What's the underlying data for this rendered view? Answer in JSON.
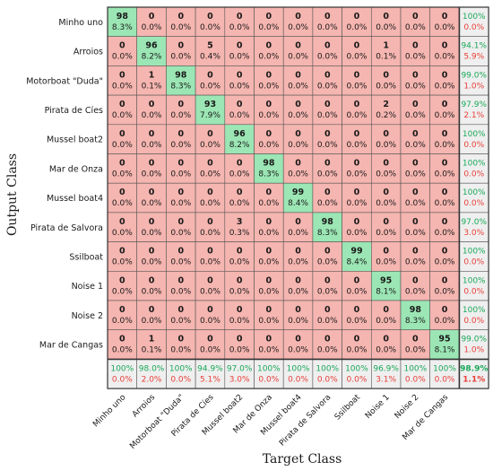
{
  "chart_data": {
    "type": "heatmap",
    "subtype": "confusion-matrix",
    "ylabel": "Output Class",
    "xlabel": "Target Class",
    "classes": [
      "Minho uno",
      "Arroios",
      "Motorboat \"Duda\"",
      "Pirata de Cíes",
      "Mussel boat2",
      "Mar de Onza",
      "Mussel boat4",
      "Pirata de Salvora",
      "Ssilboat",
      "Noise 1",
      "Noise 2",
      "Mar de Cangas"
    ],
    "counts": [
      [
        98,
        0,
        0,
        0,
        0,
        0,
        0,
        0,
        0,
        0,
        0,
        0
      ],
      [
        0,
        96,
        0,
        5,
        0,
        0,
        0,
        0,
        0,
        1,
        0,
        0
      ],
      [
        0,
        1,
        98,
        0,
        0,
        0,
        0,
        0,
        0,
        0,
        0,
        0
      ],
      [
        0,
        0,
        0,
        93,
        0,
        0,
        0,
        0,
        0,
        2,
        0,
        0
      ],
      [
        0,
        0,
        0,
        0,
        96,
        0,
        0,
        0,
        0,
        0,
        0,
        0
      ],
      [
        0,
        0,
        0,
        0,
        0,
        98,
        0,
        0,
        0,
        0,
        0,
        0
      ],
      [
        0,
        0,
        0,
        0,
        0,
        0,
        99,
        0,
        0,
        0,
        0,
        0
      ],
      [
        0,
        0,
        0,
        0,
        3,
        0,
        0,
        98,
        0,
        0,
        0,
        0
      ],
      [
        0,
        0,
        0,
        0,
        0,
        0,
        0,
        0,
        99,
        0,
        0,
        0
      ],
      [
        0,
        0,
        0,
        0,
        0,
        0,
        0,
        0,
        0,
        95,
        0,
        0
      ],
      [
        0,
        0,
        0,
        0,
        0,
        0,
        0,
        0,
        0,
        0,
        98,
        0
      ],
      [
        0,
        1,
        0,
        0,
        0,
        0,
        0,
        0,
        0,
        0,
        0,
        95
      ]
    ],
    "percents": [
      [
        "8.3%",
        "0.0%",
        "0.0%",
        "0.0%",
        "0.0%",
        "0.0%",
        "0.0%",
        "0.0%",
        "0.0%",
        "0.0%",
        "0.0%",
        "0.0%"
      ],
      [
        "0.0%",
        "8.2%",
        "0.0%",
        "0.4%",
        "0.0%",
        "0.0%",
        "0.0%",
        "0.0%",
        "0.0%",
        "0.1%",
        "0.0%",
        "0.0%"
      ],
      [
        "0.0%",
        "0.1%",
        "8.3%",
        "0.0%",
        "0.0%",
        "0.0%",
        "0.0%",
        "0.0%",
        "0.0%",
        "0.0%",
        "0.0%",
        "0.0%"
      ],
      [
        "0.0%",
        "0.0%",
        "0.0%",
        "7.9%",
        "0.0%",
        "0.0%",
        "0.0%",
        "0.0%",
        "0.0%",
        "0.2%",
        "0.0%",
        "0.0%"
      ],
      [
        "0.0%",
        "0.0%",
        "0.0%",
        "0.0%",
        "8.2%",
        "0.0%",
        "0.0%",
        "0.0%",
        "0.0%",
        "0.0%",
        "0.0%",
        "0.0%"
      ],
      [
        "0.0%",
        "0.0%",
        "0.0%",
        "0.0%",
        "0.0%",
        "8.3%",
        "0.0%",
        "0.0%",
        "0.0%",
        "0.0%",
        "0.0%",
        "0.0%"
      ],
      [
        "0.0%",
        "0.0%",
        "0.0%",
        "0.0%",
        "0.0%",
        "0.0%",
        "8.4%",
        "0.0%",
        "0.0%",
        "0.0%",
        "0.0%",
        "0.0%"
      ],
      [
        "0.0%",
        "0.0%",
        "0.0%",
        "0.0%",
        "0.3%",
        "0.0%",
        "0.0%",
        "8.3%",
        "0.0%",
        "0.0%",
        "0.0%",
        "0.0%"
      ],
      [
        "0.0%",
        "0.0%",
        "0.0%",
        "0.0%",
        "0.0%",
        "0.0%",
        "0.0%",
        "0.0%",
        "8.4%",
        "0.0%",
        "0.0%",
        "0.0%"
      ],
      [
        "0.0%",
        "0.0%",
        "0.0%",
        "0.0%",
        "0.0%",
        "0.0%",
        "0.0%",
        "0.0%",
        "0.0%",
        "8.1%",
        "0.0%",
        "0.0%"
      ],
      [
        "0.0%",
        "0.0%",
        "0.0%",
        "0.0%",
        "0.0%",
        "0.0%",
        "0.0%",
        "0.0%",
        "0.0%",
        "0.0%",
        "8.3%",
        "0.0%"
      ],
      [
        "0.0%",
        "0.1%",
        "0.0%",
        "0.0%",
        "0.0%",
        "0.0%",
        "0.0%",
        "0.0%",
        "0.0%",
        "0.0%",
        "0.0%",
        "8.1%"
      ]
    ],
    "row_summary": [
      [
        "100%",
        "0.0%"
      ],
      [
        "94.1%",
        "5.9%"
      ],
      [
        "99.0%",
        "1.0%"
      ],
      [
        "97.9%",
        "2.1%"
      ],
      [
        "100%",
        "0.0%"
      ],
      [
        "100%",
        "0.0%"
      ],
      [
        "100%",
        "0.0%"
      ],
      [
        "97.0%",
        "3.0%"
      ],
      [
        "100%",
        "0.0%"
      ],
      [
        "100%",
        "0.0%"
      ],
      [
        "100%",
        "0.0%"
      ],
      [
        "99.0%",
        "1.0%"
      ]
    ],
    "col_summary": [
      [
        "100%",
        "0.0%"
      ],
      [
        "98.0%",
        "2.0%"
      ],
      [
        "100%",
        "0.0%"
      ],
      [
        "94.9%",
        "5.1%"
      ],
      [
        "97.0%",
        "3.0%"
      ],
      [
        "100%",
        "0.0%"
      ],
      [
        "100%",
        "0.0%"
      ],
      [
        "100%",
        "0.0%"
      ],
      [
        "100%",
        "0.0%"
      ],
      [
        "96.9%",
        "3.1%"
      ],
      [
        "100%",
        "0.0%"
      ],
      [
        "100%",
        "0.0%"
      ]
    ],
    "overall": [
      "98.9%",
      "1.1%"
    ],
    "colors": {
      "correct_cell": "#9be6b4",
      "incorrect_cell": "#f5b5b0",
      "summary_cell": "#efefef",
      "grid": "#555555",
      "accuracy_text": "#1aa85a",
      "error_text": "#e8403a",
      "text": "#1a1a1a"
    }
  }
}
